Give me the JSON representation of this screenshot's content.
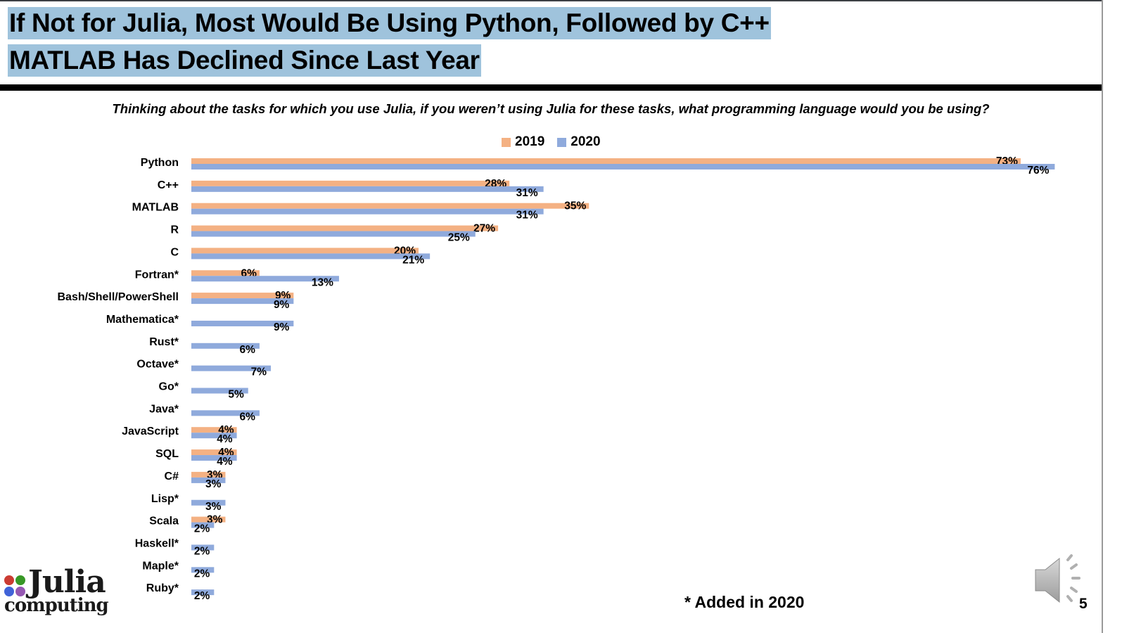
{
  "slide": {
    "title_line1": "If Not for Julia, Most Would Be Using Python, Followed by C++",
    "title_line2": "MATLAB Has Declined Since Last Year",
    "question": "Thinking about the tasks for which you use Julia, if you weren’t using Julia for these tasks, what programming language would you be using?",
    "footnote": "* Added in 2020",
    "page_number": "5",
    "logo_word1": "Julia",
    "logo_word2": "computing",
    "logo_dot_colors": [
      "#cb3c33",
      "#389826",
      "#4063d8",
      "#9558b2"
    ],
    "audio_icon": "speaker-icon"
  },
  "chart_data": {
    "type": "bar",
    "orientation": "horizontal",
    "title": "Thinking about the tasks for which you use Julia, if you weren’t using Julia for these tasks, what programming language would you be using?",
    "xlabel": "",
    "ylabel": "",
    "xlim": [
      0,
      76
    ],
    "grid": false,
    "legend_position": "top-center",
    "value_suffix": "%",
    "categories": [
      "Python",
      "C++",
      "MATLAB",
      "R",
      "C",
      "Fortran*",
      "Bash/Shell/PowerShell",
      "Mathematica*",
      "Rust*",
      "Octave*",
      "Go*",
      "Java*",
      "JavaScript",
      "SQL",
      "C#",
      "Lisp*",
      "Scala",
      "Haskell*",
      "Maple*",
      "Ruby*"
    ],
    "series": [
      {
        "name": "2019",
        "color": "#f4b183",
        "values": [
          73,
          28,
          35,
          27,
          20,
          6,
          9,
          null,
          null,
          null,
          null,
          null,
          4,
          4,
          3,
          null,
          3,
          null,
          null,
          null
        ]
      },
      {
        "name": "2020",
        "color": "#8faadc",
        "values": [
          76,
          31,
          31,
          25,
          21,
          13,
          9,
          9,
          6,
          7,
          5,
          6,
          4,
          4,
          3,
          3,
          2,
          2,
          2,
          2
        ]
      }
    ]
  }
}
